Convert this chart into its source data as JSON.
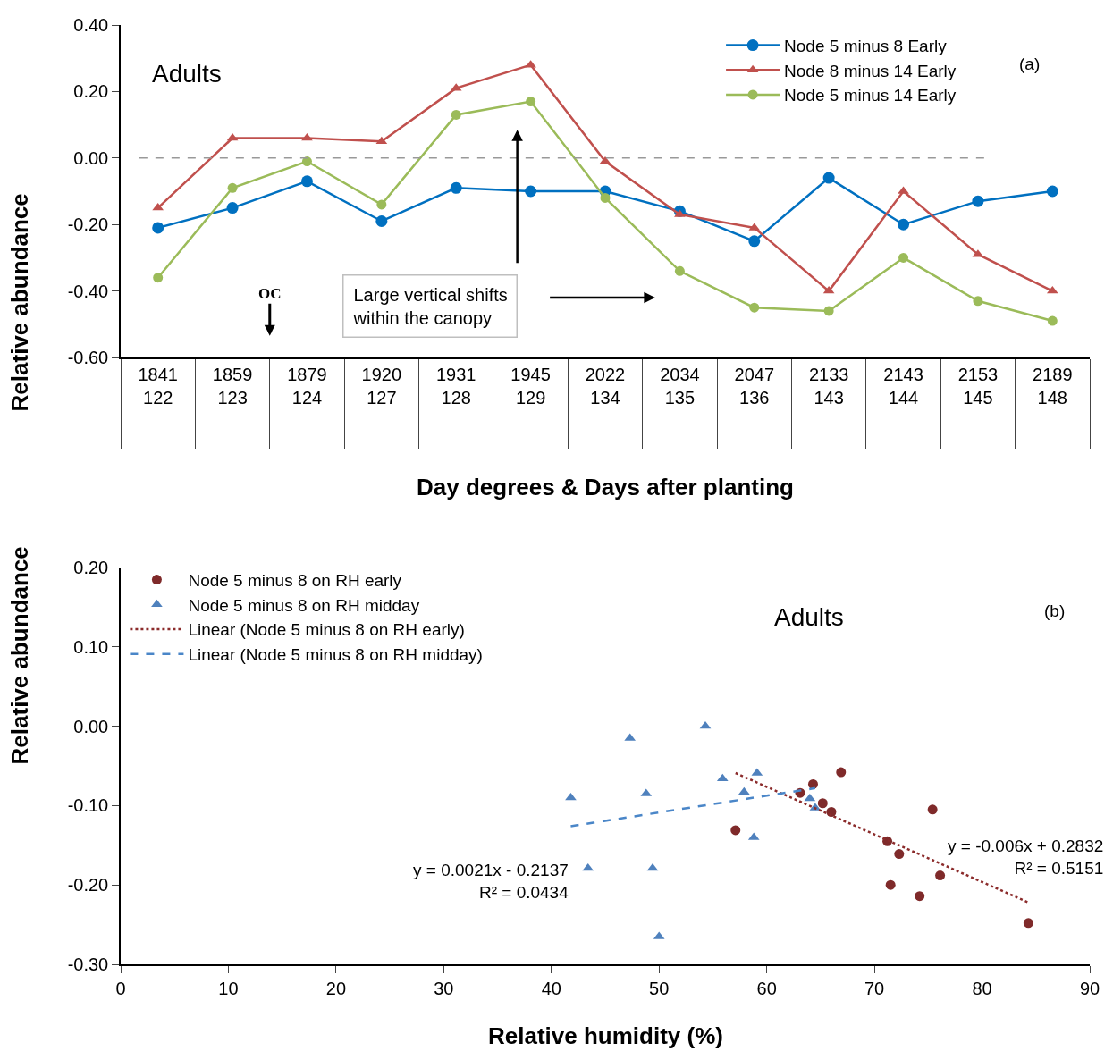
{
  "chart_data": [
    {
      "type": "line",
      "xlabel": "Day degrees & Days after planting",
      "ylabel": "Relative abundance",
      "categories": [
        "1841\n122",
        "1859\n123",
        "1879\n124",
        "1920\n127",
        "1931\n128",
        "1945\n129",
        "2022\n134",
        "2034\n135",
        "2047\n136",
        "2133\n143",
        "2143\n144",
        "2153\n145",
        "2189\n148"
      ],
      "series": [
        {
          "name": "Node 5 minus 8 Early",
          "color": "#0070c0",
          "marker": "circle",
          "values": [
            -0.21,
            -0.15,
            -0.07,
            -0.19,
            -0.09,
            -0.1,
            -0.1,
            -0.16,
            -0.25,
            -0.06,
            -0.2,
            -0.13,
            -0.1
          ]
        },
        {
          "name": "Node 8 minus 14 Early",
          "color": "#c0504d",
          "marker": "triangle",
          "values": [
            -0.15,
            0.06,
            0.06,
            0.05,
            0.21,
            0.28,
            -0.01,
            -0.17,
            -0.21,
            -0.4,
            -0.1,
            -0.29,
            -0.4
          ]
        },
        {
          "name": "Node 5 minus 14 Early",
          "color": "#9bbb59",
          "marker": "circle",
          "values": [
            -0.36,
            -0.09,
            -0.01,
            -0.14,
            0.13,
            0.17,
            -0.12,
            -0.34,
            -0.45,
            -0.46,
            -0.3,
            -0.43,
            -0.49
          ]
        }
      ],
      "ylim": [
        -0.6,
        0.4
      ],
      "yticks": [
        {
          "value": -0.6,
          "label": "-0.60"
        },
        {
          "value": -0.4,
          "label": "-0.40"
        },
        {
          "value": -0.2,
          "label": "-0.20"
        },
        {
          "value": 0,
          "label": "0.00"
        },
        {
          "value": 0.2,
          "label": "0.20"
        },
        {
          "value": 0.4,
          "label": "0.40"
        }
      ],
      "ref_lines": [
        {
          "axis": "y",
          "value": 0,
          "color": "#999999",
          "line_style": "dashed"
        }
      ],
      "annotations": [
        "Adults",
        "(a)",
        "OC",
        "Large vertical shifts\nwithin the canopy"
      ],
      "legend": "top right"
    },
    {
      "type": "scatter",
      "xlabel": "Relative humidity (%)",
      "ylabel": "Relative abundance",
      "series": [
        {
          "name": "Node 5 minus 8 on RH early",
          "color": "#7f2a2a",
          "marker": "circle",
          "x": [
            57.1,
            63.1,
            64.3,
            65.2,
            66.0,
            66.9,
            71.2,
            72.3,
            71.5,
            74.2,
            75.4,
            76.1,
            84.3
          ],
          "values": [
            -0.131,
            -0.084,
            -0.073,
            -0.097,
            -0.108,
            -0.058,
            -0.145,
            -0.161,
            -0.2,
            -0.214,
            -0.105,
            -0.188,
            -0.248
          ]
        },
        {
          "name": "Node 5 minus 8 on RH midday",
          "color": "#4f81bd",
          "marker": "triangle",
          "x": [
            41.8,
            43.4,
            47.3,
            48.8,
            49.4,
            50.0,
            54.3,
            55.9,
            57.9,
            58.8,
            59.1,
            64.0,
            64.5
          ],
          "values": [
            -0.09,
            -0.179,
            -0.015,
            -0.085,
            -0.179,
            -0.265,
            0.0,
            -0.066,
            -0.083,
            -0.14,
            -0.059,
            -0.091,
            -0.103
          ]
        },
        {
          "name": "Linear (Node 5 minus 8 on RH early)",
          "type": "line",
          "color": "#8b2b2b",
          "line_style": "dotted",
          "marker": "none",
          "x": [
            57.1,
            84.3
          ],
          "values": [
            -0.059,
            -0.222
          ]
        },
        {
          "name": "Linear (Node 5 minus 8 on RH midday)",
          "type": "line",
          "color": "#4a86c8",
          "line_style": "dashed",
          "marker": "none",
          "x": [
            41.8,
            64.5
          ],
          "values": [
            -0.126,
            -0.078
          ]
        }
      ],
      "xlim": [
        0,
        90
      ],
      "xticks": [
        0,
        10,
        20,
        30,
        40,
        50,
        60,
        70,
        80,
        90
      ],
      "ylim": [
        -0.3,
        0.2
      ],
      "yticks": [
        {
          "value": -0.3,
          "label": "-0.30"
        },
        {
          "value": -0.2,
          "label": "-0.20"
        },
        {
          "value": -0.1,
          "label": "-0.10"
        },
        {
          "value": 0,
          "label": "0.00"
        },
        {
          "value": 0.1,
          "label": "0.10"
        },
        {
          "value": 0.2,
          "label": "0.20"
        }
      ],
      "annotations": [
        "Adults",
        "(b)",
        "y = 0.0021x - 0.2137\nR² = 0.0434",
        "y = -0.006x + 0.2832\nR² = 0.5151"
      ],
      "legend": "top left"
    }
  ]
}
